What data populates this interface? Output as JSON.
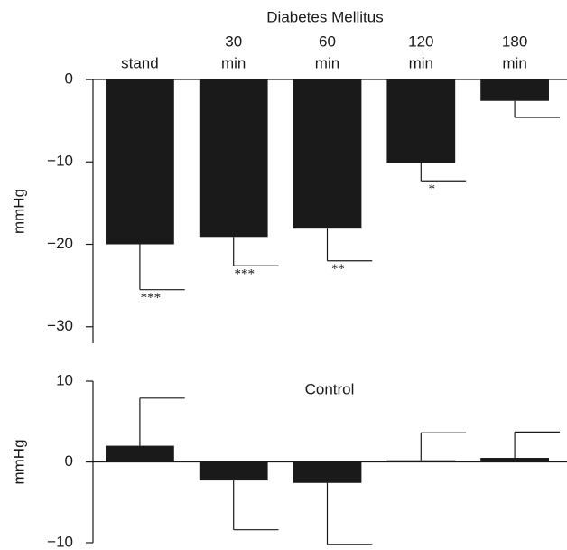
{
  "chart_data": [
    {
      "type": "bar",
      "title": "Diabetes Mellitus",
      "categories": [
        [
          "stand"
        ],
        [
          "30",
          "min"
        ],
        [
          "60",
          "min"
        ],
        [
          "120",
          "min"
        ],
        [
          "180",
          "min"
        ]
      ],
      "values": [
        -20.0,
        -19.1,
        -18.1,
        -10.1,
        -2.6
      ],
      "errors": [
        5.5,
        3.5,
        3.9,
        2.2,
        2.0
      ],
      "annotations": [
        "***",
        "***",
        "**",
        "*",
        null
      ],
      "ylabel": "mmHg",
      "color": "#1a1a1a",
      "ylim": [
        -32,
        0
      ],
      "yticks": [
        0,
        {
          "value": -10,
          "label": "−10"
        },
        {
          "value": -20,
          "label": "−20"
        },
        {
          "value": -30,
          "label": "−30"
        }
      ]
    },
    {
      "type": "bar",
      "title": "Control",
      "values": [
        2.0,
        -2.3,
        -2.6,
        0.2,
        0.5
      ],
      "errors": [
        5.9,
        6.1,
        7.6,
        3.4,
        3.2
      ],
      "ylabel": "mmHg",
      "color": "#1a1a1a",
      "ylim": [
        -10,
        10
      ],
      "yticks": [
        10,
        0,
        {
          "value": -10,
          "label": "−10"
        }
      ]
    }
  ]
}
